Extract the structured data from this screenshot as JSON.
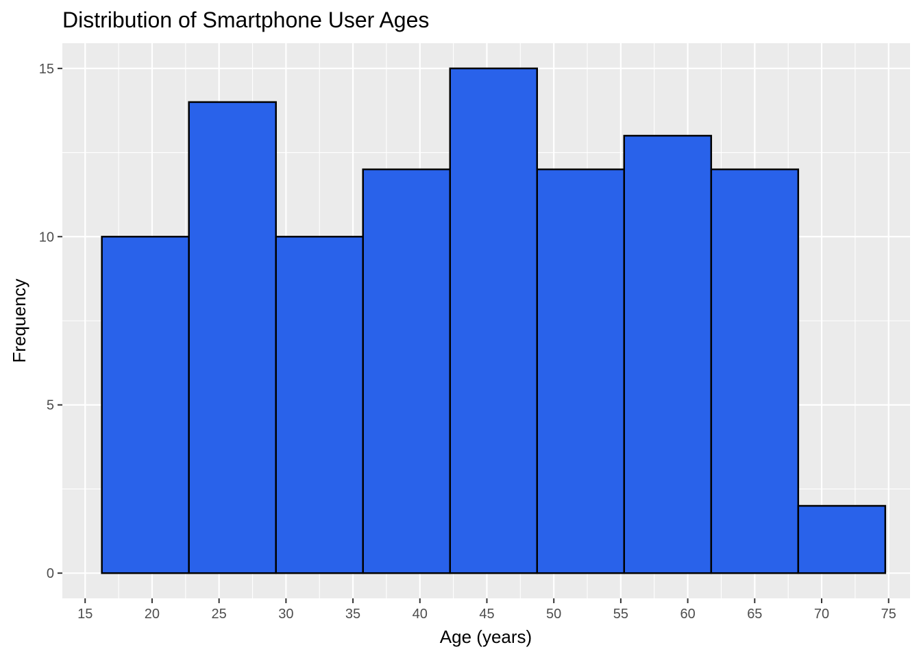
{
  "chart_data": {
    "type": "bar",
    "title": "Distribution of Smartphone User Ages",
    "xlabel": "Age (years)",
    "ylabel": "Frequency",
    "bins": [
      {
        "start": 16.25,
        "end": 22.75,
        "count": 10
      },
      {
        "start": 22.75,
        "end": 29.25,
        "count": 14
      },
      {
        "start": 29.25,
        "end": 35.75,
        "count": 10
      },
      {
        "start": 35.75,
        "end": 42.25,
        "count": 12
      },
      {
        "start": 42.25,
        "end": 48.75,
        "count": 15
      },
      {
        "start": 48.75,
        "end": 55.25,
        "count": 12
      },
      {
        "start": 55.25,
        "end": 61.75,
        "count": 13
      },
      {
        "start": 61.75,
        "end": 68.25,
        "count": 12
      },
      {
        "start": 68.25,
        "end": 74.75,
        "count": 2
      }
    ],
    "xlim": [
      13.3,
      76.6
    ],
    "ylim": [
      -0.75,
      15.75
    ],
    "xticks": [
      15,
      20,
      25,
      30,
      35,
      40,
      45,
      50,
      55,
      60,
      65,
      70,
      75
    ],
    "xtick_labels": [
      "15",
      "20",
      "25",
      "30",
      "35",
      "40",
      "45",
      "50",
      "55",
      "60",
      "65",
      "70",
      "75"
    ],
    "yticks": [
      0,
      5,
      10,
      15
    ],
    "ytick_labels": [
      "0",
      "5",
      "10",
      "15"
    ],
    "grid": true,
    "colors": {
      "bar_fill": "#2962EA",
      "bar_stroke": "#000000",
      "panel_background": "#EBEBEB",
      "grid_line": "#FFFFFF",
      "tick_label": "#4D4D4D"
    }
  }
}
